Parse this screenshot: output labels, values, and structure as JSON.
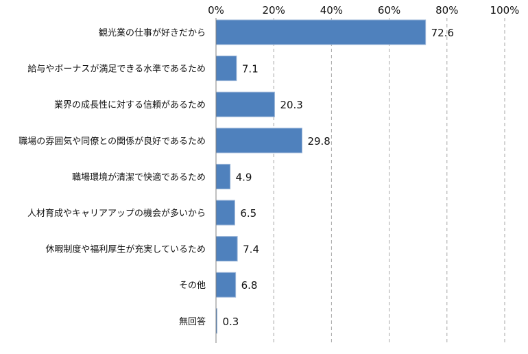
{
  "chart_data": {
    "type": "bar",
    "orientation": "horizontal",
    "categories": [
      "観光業の仕事が好きだから",
      "給与やボーナスが満足できる水準であるため",
      "業界の成長性に対する信頼があるため",
      "職場の雰囲気や同僚との関係が良好であるため",
      "職場環境が清潔で快適であるため",
      "人材育成やキャリアアップの機会が多いから",
      "休暇制度や福利厚生が充実しているため",
      "その他",
      "無回答"
    ],
    "values": [
      72.6,
      7.1,
      20.3,
      29.8,
      4.9,
      6.5,
      7.4,
      6.8,
      0.3
    ],
    "value_labels": [
      "72.6",
      "7.1",
      "20.3",
      "29.8",
      "4.9",
      "6.5",
      "7.4",
      "6.8",
      "0.3"
    ],
    "xlim": [
      0,
      100
    ],
    "ticks": [
      0,
      20,
      40,
      60,
      80,
      100
    ],
    "tick_labels": [
      "0%",
      "20%",
      "40%",
      "60%",
      "80%",
      "100%"
    ],
    "x_axis_position": "top",
    "grid": "vertical dashed",
    "bar_color": "#4F81BD",
    "bar_edge_color": "#9DB7D9",
    "grid_color": "#a6a6a6",
    "title": "",
    "xlabel": "",
    "ylabel": ""
  }
}
